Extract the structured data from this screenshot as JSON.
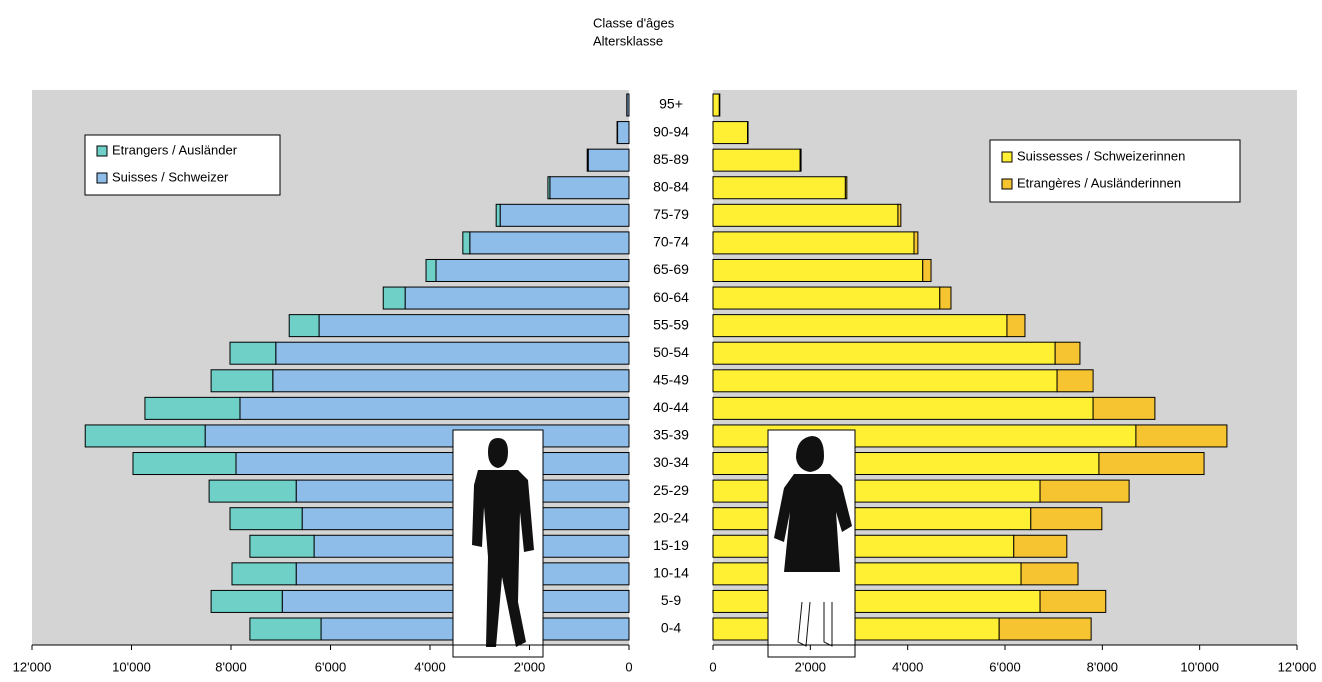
{
  "chart_data": {
    "type": "pyramid",
    "title": "Classe d'âges",
    "subtitle": "Altersklasse",
    "categories": [
      "0-4",
      "5-9",
      "10-14",
      "15-19",
      "20-24",
      "25-29",
      "30-34",
      "35-39",
      "40-44",
      "45-49",
      "50-54",
      "55-59",
      "60-64",
      "65-69",
      "70-74",
      "75-79",
      "80-84",
      "85-89",
      "90-94",
      "95+"
    ],
    "series": [
      {
        "name": "Etrangers / Ausländer",
        "color": "#6fd0c8",
        "side": "left",
        "position": "outer",
        "values": [
          1430,
          1430,
          1290,
          1290,
          1450,
          1750,
          2070,
          2410,
          1910,
          1240,
          920,
          600,
          440,
          200,
          140,
          80,
          40,
          20,
          10,
          5
        ]
      },
      {
        "name": "Suisses / Schweizer",
        "color": "#8dbde8",
        "side": "left",
        "position": "inner",
        "values": [
          6190,
          6970,
          6690,
          6330,
          6570,
          6690,
          7900,
          8520,
          7820,
          7160,
          7100,
          6230,
          4500,
          3880,
          3200,
          2590,
          1590,
          820,
          230,
          40
        ]
      },
      {
        "name": "Suissesses / Schweizerinnen",
        "color": "#fff033",
        "side": "right",
        "position": "inner",
        "values": [
          5880,
          6720,
          6330,
          6180,
          6530,
          6720,
          7930,
          8690,
          7810,
          7070,
          7030,
          6040,
          4660,
          4310,
          4130,
          3800,
          2720,
          1790,
          710,
          130
        ]
      },
      {
        "name": "Etrangères / Ausländerinnen",
        "color": "#f7c431",
        "side": "right",
        "position": "outer",
        "values": [
          1890,
          1350,
          1170,
          1090,
          1460,
          1830,
          2160,
          1870,
          1270,
          740,
          510,
          370,
          230,
          170,
          80,
          60,
          30,
          20,
          10,
          10
        ]
      }
    ],
    "xlim": [
      0,
      12000
    ],
    "xticks": [
      {
        "value": 0,
        "label": "0"
      },
      {
        "value": 2000,
        "label": "2'000"
      },
      {
        "value": 4000,
        "label": "4'000"
      },
      {
        "value": 6000,
        "label": "6'000"
      },
      {
        "value": 8000,
        "label": "8'000"
      },
      {
        "value": 10000,
        "label": "10'000"
      },
      {
        "value": 12000,
        "label": "12'000"
      }
    ]
  }
}
